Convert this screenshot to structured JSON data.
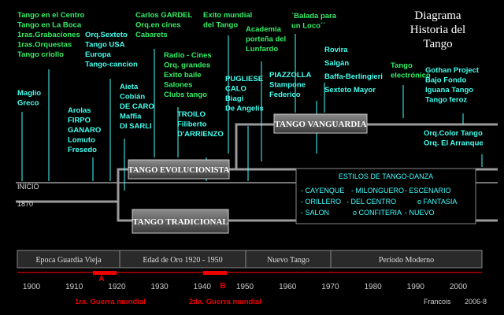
{
  "title": {
    "lines": [
      "Diagrama",
      "Historia del",
      "Tango"
    ]
  },
  "notes": [
    {
      "lines": [
        "Tango en el Centro",
        "Tango en La Boca",
        "1ras.Grabaciones",
        "1ras.Orquestas",
        "Tango criollo"
      ]
    },
    {
      "lines": [
        "Maglio",
        "Greco"
      ]
    },
    {
      "lines": [
        "Arolas",
        "FIRPO",
        "GANARO",
        "Lomuto",
        "Fresedo"
      ]
    },
    {
      "lines": [
        "Orq.Sexteto",
        "Tango USA",
        "Europa",
        "Tango-cancion"
      ]
    },
    {
      "lines": [
        "Aieta",
        "Cobián",
        "DE CARO",
        "Maffia",
        "DI SARLI"
      ]
    },
    {
      "lines": [
        "Carlos GARDEL",
        "Orq.en cines",
        "Cabarets"
      ]
    },
    {
      "lines": [
        "Radio - Cines",
        "Orq. grandes",
        "Exito baile",
        "Salones",
        "Clubs tango"
      ]
    },
    {
      "lines": [
        "Exito mundial",
        "del Tango"
      ]
    },
    {
      "lines": [
        "TROILO",
        "Filiberto",
        "D'ARRIENZO"
      ]
    },
    {
      "lines": [
        "PUGLIESE",
        "CALO",
        "Biagi",
        "De Angelis"
      ]
    },
    {
      "lines": [
        "Academia",
        "porteña del",
        "Lunfardo"
      ]
    },
    {
      "lines": [
        "PIAZZOLLA",
        "Stampone",
        "Federico"
      ]
    },
    {
      "lines": [
        "`Balada para",
        "un Loco´´"
      ]
    },
    {
      "lines": [
        "Rovira",
        "Salgán",
        "Baffa-Berlingieri",
        "Sexteto Mayor"
      ]
    },
    {
      "lines": [
        "Tango",
        "electrónico"
      ]
    },
    {
      "lines": [
        "Gothan Project",
        "Bajo Fondo",
        "Iguana Tango",
        "Tango feroz"
      ]
    },
    {
      "lines": [
        "Orq.Color Tango",
        "Orq. El Arranque"
      ]
    }
  ],
  "boxes": {
    "vanguardia": "TANGO VANGUARDIA",
    "evolucionista": "TANGO EVOLUCIONISTA",
    "tradicional": "TANGO TRADICIONAL"
  },
  "estilos": {
    "title": "ESTILOS  DE  TANGO-DANZA",
    "rows": [
      [
        "- CAYENQUE",
        "- MILONGUERO",
        "- ESCENARIO"
      ],
      [
        "- ORILLERO",
        "- DEL CENTRO",
        "o FANTASIA"
      ],
      [
        "- SALON",
        "o CONFITERIA",
        "- NUEVO"
      ]
    ]
  },
  "timeline": {
    "start_label": "INICIO",
    "start_year": "1870",
    "periods": [
      "Epoca Guardia Vieja",
      "Edad de Oro 1920 - 1950",
      "Nuevo Tango",
      "Periodo Moderno"
    ],
    "years": [
      "1900",
      "1910",
      "1920",
      "1930",
      "1940",
      "1950",
      "1960",
      "1970",
      "1980",
      "1990",
      "2000"
    ],
    "markers": [
      "A",
      "B"
    ],
    "events": [
      "1ra. Guerra mundial",
      "2da. Guerra mundial"
    ]
  },
  "credit": {
    "author": "Francois",
    "date": "2006-8"
  }
}
